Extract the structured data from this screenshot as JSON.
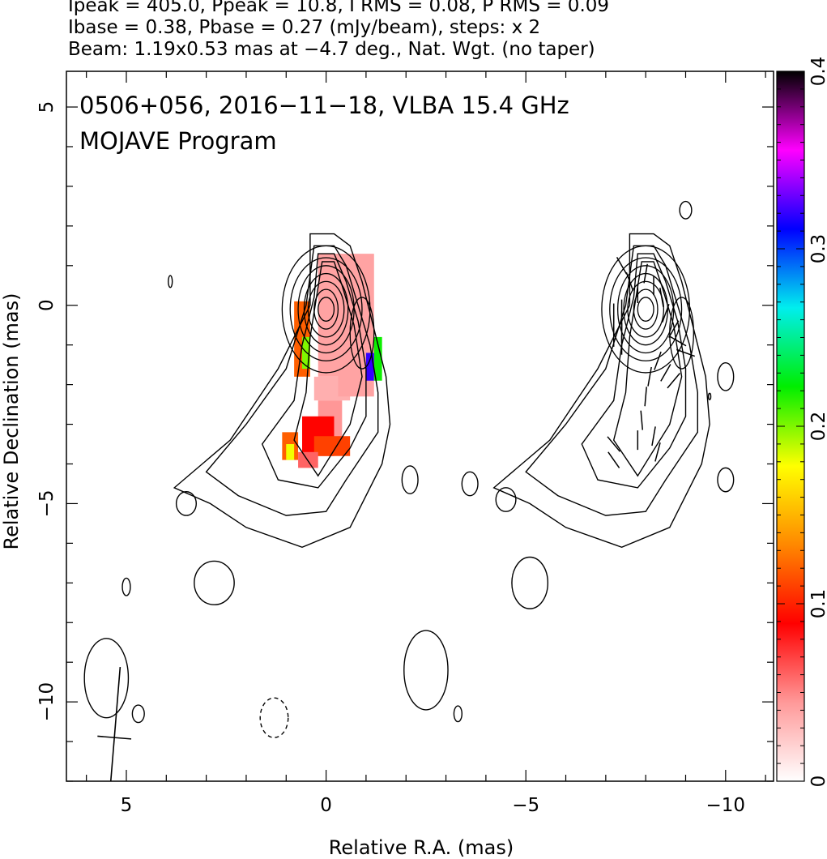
{
  "header": {
    "line1": "Ipeak = 405.0, Ppeak = 10.8, I RMS = 0.08, P RMS = 0.09",
    "line2": "Ibase = 0.38, Pbase = 0.27 (mJy/beam), steps: x 2",
    "line3": "Beam: 1.19x0.53 mas at −4.7 deg., Nat. Wgt. (no taper)"
  },
  "plot_text": {
    "source_line": "0506+056, 2016−11−18, VLBA 15.4 GHz",
    "program_line": "MOJAVE Program"
  },
  "chart_data": {
    "type": "heatmap",
    "subtype": "radio contour map with fractional polarization color overlay",
    "xlabel": "Relative R.A. (mas)",
    "ylabel": "Relative Declination (mas)",
    "xlim": [
      6.5,
      -11.2
    ],
    "ylim": [
      -12.0,
      5.9
    ],
    "x_ticks": [
      5,
      0,
      -5,
      -10
    ],
    "x_tick_labels": [
      "5",
      "0",
      "−5",
      "−10"
    ],
    "y_ticks": [
      5,
      0,
      -5,
      -10
    ],
    "y_tick_labels": [
      "5",
      "0",
      "−5",
      "−10"
    ],
    "colorbar": {
      "range": [
        0,
        0.4
      ],
      "ticks": [
        0,
        0.1,
        0.2,
        0.3,
        0.4
      ],
      "tick_labels": [
        "0",
        "0.1",
        "0.2",
        "0.3",
        "0.4"
      ],
      "colors": [
        "#ffffff",
        "#ff9999",
        "#ff0000",
        "#ff8800",
        "#ffff00",
        "#00ee00",
        "#00eeee",
        "#0000ff",
        "#ff00ff",
        "#000000"
      ]
    },
    "beam": {
      "major_mas": 1.19,
      "minor_mas": 0.53,
      "pa_deg": -4.7,
      "center": [
        5.3,
        -10.9
      ]
    },
    "left_panel": {
      "contours": [
        {
          "id": "outer1",
          "points": [
            [
              0.4,
              1.8
            ],
            [
              -0.2,
              1.8
            ],
            [
              -0.6,
              1.5
            ],
            [
              -0.9,
              0.6
            ],
            [
              -1.2,
              -0.6
            ],
            [
              -1.5,
              -1.8
            ],
            [
              -1.6,
              -3.0
            ],
            [
              -1.4,
              -4.0
            ],
            [
              -0.6,
              -5.6
            ],
            [
              0.6,
              -6.1
            ],
            [
              2.0,
              -5.6
            ],
            [
              2.9,
              -5.0
            ],
            [
              3.8,
              -4.6
            ],
            [
              2.4,
              -3.4
            ],
            [
              1.2,
              -1.6
            ],
            [
              0.4,
              0.0
            ],
            [
              0.4,
              1.8
            ]
          ]
        },
        {
          "id": "outer2",
          "points": [
            [
              0.3,
              1.5
            ],
            [
              -0.2,
              1.5
            ],
            [
              -0.5,
              1.0
            ],
            [
              -0.8,
              0.0
            ],
            [
              -1.1,
              -1.0
            ],
            [
              -1.3,
              -2.2
            ],
            [
              -1.3,
              -3.2
            ],
            [
              -0.5,
              -4.4
            ],
            [
              0.0,
              -5.2
            ],
            [
              1.0,
              -5.3
            ],
            [
              2.2,
              -4.8
            ],
            [
              3.0,
              -4.2
            ],
            [
              2.0,
              -3.0
            ],
            [
              1.0,
              -1.6
            ],
            [
              0.5,
              0.0
            ],
            [
              0.3,
              1.5
            ]
          ]
        },
        {
          "id": "mid1",
          "points": [
            [
              0.2,
              1.3
            ],
            [
              -0.2,
              1.3
            ],
            [
              -0.5,
              0.6
            ],
            [
              -0.8,
              -0.4
            ],
            [
              -1.0,
              -1.6
            ],
            [
              -1.0,
              -2.8
            ],
            [
              -0.6,
              -3.6
            ],
            [
              0.2,
              -4.6
            ],
            [
              1.2,
              -4.4
            ],
            [
              1.6,
              -3.5
            ],
            [
              0.8,
              -2.4
            ],
            [
              0.6,
              -1.0
            ],
            [
              0.3,
              0.2
            ],
            [
              0.2,
              1.3
            ]
          ]
        },
        {
          "id": "mid2",
          "points": [
            [
              0.1,
              1.1
            ],
            [
              -0.2,
              1.1
            ],
            [
              -0.4,
              0.5
            ],
            [
              -0.7,
              -0.5
            ],
            [
              -0.9,
              -1.8
            ],
            [
              -0.6,
              -3.0
            ],
            [
              0.2,
              -4.3
            ],
            [
              0.8,
              -3.4
            ],
            [
              0.5,
              -2.2
            ],
            [
              0.4,
              -0.8
            ],
            [
              0.1,
              1.1
            ]
          ]
        },
        {
          "id": "core_rings",
          "center": [
            0.0,
            -0.1
          ],
          "radii": [
            [
              1.1,
              1.6
            ],
            [
              0.9,
              1.3
            ],
            [
              0.7,
              1.1
            ],
            [
              0.55,
              0.9
            ],
            [
              0.45,
              0.7
            ],
            [
              0.3,
              0.5
            ],
            [
              0.2,
              0.3
            ]
          ]
        },
        {
          "id": "blob_a",
          "center": [
            -0.9,
            -0.7
          ],
          "radii": [
            [
              0.3,
              0.9
            ]
          ]
        }
      ],
      "noise_blobs": [
        {
          "center": [
            3.9,
            0.6
          ],
          "radii": [
            0.05,
            0.15
          ]
        },
        {
          "center": [
            3.5,
            -5.0
          ],
          "radii": [
            0.25,
            0.3
          ]
        },
        {
          "center": [
            2.8,
            -7.0
          ],
          "radii": [
            0.5,
            0.55
          ]
        },
        {
          "center": [
            5.0,
            -7.1
          ],
          "radii": [
            0.1,
            0.22
          ]
        },
        {
          "center": [
            5.5,
            -9.4
          ],
          "radii": [
            0.55,
            1.0
          ]
        },
        {
          "center": [
            4.7,
            -10.3
          ],
          "radii": [
            0.15,
            0.22
          ]
        },
        {
          "center": [
            1.3,
            -10.4
          ],
          "radii": [
            0.35,
            0.5
          ],
          "dashed": true
        },
        {
          "center": [
            -2.1,
            -4.4
          ],
          "radii": [
            0.2,
            0.35
          ]
        },
        {
          "center": [
            -3.6,
            -4.5
          ],
          "radii": [
            0.2,
            0.3
          ]
        },
        {
          "center": [
            -4.5,
            -4.9
          ],
          "radii": [
            0.25,
            0.3
          ]
        },
        {
          "center": [
            -2.5,
            -9.2
          ],
          "radii": [
            0.55,
            1.0
          ]
        },
        {
          "center": [
            -3.3,
            -10.3
          ],
          "radii": [
            0.1,
            0.2
          ]
        },
        {
          "center": [
            -5.1,
            -7.0
          ],
          "radii": [
            0.45,
            0.65
          ]
        }
      ],
      "polarization_patches": [
        {
          "x": [
            -1.2,
            0.2
          ],
          "y": [
            1.3,
            -1.8
          ],
          "value": 0.04
        },
        {
          "x": [
            -0.8,
            -0.4
          ],
          "y": [
            -0.8,
            -1.8
          ],
          "value": 0.09
        },
        {
          "x": [
            -0.6,
            0.3
          ],
          "y": [
            -1.8,
            -2.4
          ],
          "value": 0.035
        },
        {
          "x": [
            -1.2,
            -0.3
          ],
          "y": [
            -0.6,
            -2.3
          ],
          "value": 0.04
        },
        {
          "x": [
            0.4,
            0.8
          ],
          "y": [
            0.1,
            -1.8
          ],
          "value": 0.12
        },
        {
          "x": [
            0.4,
            0.6
          ],
          "y": [
            -0.8,
            -1.6
          ],
          "value": 0.2
        },
        {
          "x": [
            -1.4,
            -1.2
          ],
          "y": [
            -0.8,
            -1.9
          ],
          "value": 0.22
        },
        {
          "x": [
            -1.2,
            -1.0
          ],
          "y": [
            -1.2,
            -1.9
          ],
          "value": 0.32
        },
        {
          "x": [
            -0.4,
            0.2
          ],
          "y": [
            -2.4,
            -3.6
          ],
          "value": 0.045
        },
        {
          "x": [
            -0.2,
            0.6
          ],
          "y": [
            -2.8,
            -3.8
          ],
          "value": 0.09
        },
        {
          "x": [
            -0.6,
            0.3
          ],
          "y": [
            -3.3,
            -3.8
          ],
          "value": 0.11
        },
        {
          "x": [
            0.7,
            1.1
          ],
          "y": [
            -3.2,
            -3.9
          ],
          "value": 0.12
        },
        {
          "x": [
            0.8,
            1.0
          ],
          "y": [
            -3.5,
            -3.9
          ],
          "value": 0.18
        },
        {
          "x": [
            0.2,
            0.7
          ],
          "y": [
            -3.7,
            -4.1
          ],
          "value": 0.06
        }
      ]
    },
    "right_panel": {
      "offset_mas": -8.0,
      "contours_mirror": true,
      "evpa_ticks": [
        {
          "x": -7.4,
          "y": 1.0,
          "angle": 30
        },
        {
          "x": -7.6,
          "y": 0.6,
          "angle": 20
        },
        {
          "x": -7.8,
          "y": 0.3,
          "angle": 0
        },
        {
          "x": -8.0,
          "y": 0.8,
          "angle": -10
        },
        {
          "x": -8.2,
          "y": 0.5,
          "angle": 0
        },
        {
          "x": -8.4,
          "y": 0.2,
          "angle": 10
        },
        {
          "x": -8.5,
          "y": -0.2,
          "angle": -20
        },
        {
          "x": -8.7,
          "y": -0.6,
          "angle": -30
        },
        {
          "x": -7.4,
          "y": -0.1,
          "angle": 0
        },
        {
          "x": -7.4,
          "y": -0.4,
          "angle": 0
        },
        {
          "x": -7.4,
          "y": -0.7,
          "angle": 0
        },
        {
          "x": -7.4,
          "y": -1.0,
          "angle": 0
        },
        {
          "x": -7.2,
          "y": -0.2,
          "angle": 0
        },
        {
          "x": -7.2,
          "y": -0.5,
          "angle": 0
        },
        {
          "x": -7.2,
          "y": -0.8,
          "angle": 0
        },
        {
          "x": -8.3,
          "y": -1.4,
          "angle": -20
        },
        {
          "x": -8.5,
          "y": -1.7,
          "angle": -30
        },
        {
          "x": -8.7,
          "y": -1.9,
          "angle": -40
        },
        {
          "x": -8.1,
          "y": -1.8,
          "angle": -10
        },
        {
          "x": -8.0,
          "y": -2.3,
          "angle": -5
        },
        {
          "x": -7.9,
          "y": -2.9,
          "angle": 5
        },
        {
          "x": -7.8,
          "y": -3.4,
          "angle": 0
        },
        {
          "x": -8.2,
          "y": -3.3,
          "angle": -10
        },
        {
          "x": -8.3,
          "y": -3.7,
          "angle": -15
        },
        {
          "x": -7.2,
          "y": -3.5,
          "angle": 40
        },
        {
          "x": -7.2,
          "y": -3.9,
          "angle": 35
        },
        {
          "x": -8.8,
          "y": -0.9,
          "angle": 60
        },
        {
          "x": -9.0,
          "y": -1.2,
          "angle": 70
        }
      ],
      "extra_blobs": [
        {
          "center": [
            -9.0,
            2.4
          ],
          "radii": [
            0.15,
            0.22
          ]
        },
        {
          "center": [
            -10.0,
            -1.8
          ],
          "radii": [
            0.2,
            0.35
          ]
        },
        {
          "center": [
            -10.0,
            -4.4
          ],
          "radii": [
            0.2,
            0.3
          ]
        },
        {
          "center": [
            -9.6,
            -2.3
          ],
          "radii": [
            0.03,
            0.08
          ]
        }
      ]
    }
  }
}
